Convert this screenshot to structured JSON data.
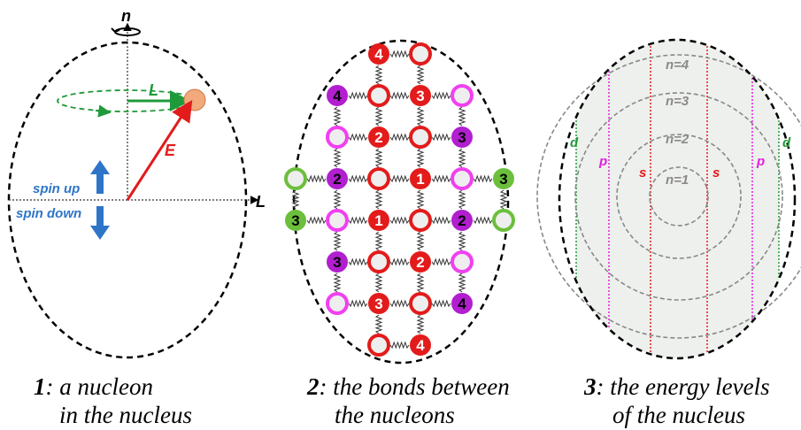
{
  "panel1": {
    "axis_n": "n",
    "axis_L": "L",
    "vector_L": "L",
    "vector_E": "E",
    "spin_up": "spin up",
    "spin_down": "spin down",
    "caption_num": "1",
    "caption_line1": ": a nucleon",
    "caption_line2": "in the nucleus"
  },
  "panel2": {
    "caption_num": "2",
    "caption_line1": ": the bonds between",
    "caption_line2": "the nucleons",
    "nodes": [
      {
        "r": 0,
        "c": 1,
        "t": "red-num",
        "n": "4"
      },
      {
        "r": 0,
        "c": 2,
        "t": "red"
      },
      {
        "r": 1,
        "c": 0,
        "t": "purple-num",
        "n": "4"
      },
      {
        "r": 1,
        "c": 1,
        "t": "red"
      },
      {
        "r": 1,
        "c": 2,
        "t": "red-num",
        "n": "3"
      },
      {
        "r": 1,
        "c": 3,
        "t": "pink"
      },
      {
        "r": 2,
        "c": 0,
        "t": "pink"
      },
      {
        "r": 2,
        "c": 1,
        "t": "red-num",
        "n": "2"
      },
      {
        "r": 2,
        "c": 2,
        "t": "red"
      },
      {
        "r": 2,
        "c": 3,
        "t": "purple-num",
        "n": "3"
      },
      {
        "r": 3,
        "c": -1,
        "t": "green"
      },
      {
        "r": 3,
        "c": 0,
        "t": "purple-num",
        "n": "2"
      },
      {
        "r": 3,
        "c": 1,
        "t": "red"
      },
      {
        "r": 3,
        "c": 2,
        "t": "red-num",
        "n": "1"
      },
      {
        "r": 3,
        "c": 3,
        "t": "pink"
      },
      {
        "r": 3,
        "c": 4,
        "t": "green-num",
        "n": "3"
      },
      {
        "r": 4,
        "c": -1,
        "t": "green-num",
        "n": "3"
      },
      {
        "r": 4,
        "c": 0,
        "t": "pink"
      },
      {
        "r": 4,
        "c": 1,
        "t": "red-num",
        "n": "1"
      },
      {
        "r": 4,
        "c": 2,
        "t": "red"
      },
      {
        "r": 4,
        "c": 3,
        "t": "purple-num",
        "n": "2"
      },
      {
        "r": 4,
        "c": 4,
        "t": "green"
      },
      {
        "r": 5,
        "c": 0,
        "t": "purple-num",
        "n": "3"
      },
      {
        "r": 5,
        "c": 1,
        "t": "red"
      },
      {
        "r": 5,
        "c": 2,
        "t": "red-num",
        "n": "2"
      },
      {
        "r": 5,
        "c": 3,
        "t": "pink"
      },
      {
        "r": 6,
        "c": 0,
        "t": "pink"
      },
      {
        "r": 6,
        "c": 1,
        "t": "red-num",
        "n": "3"
      },
      {
        "r": 6,
        "c": 2,
        "t": "red"
      },
      {
        "r": 6,
        "c": 3,
        "t": "purple-num",
        "n": "4"
      },
      {
        "r": 7,
        "c": 1,
        "t": "red"
      },
      {
        "r": 7,
        "c": 2,
        "t": "red-num",
        "n": "4"
      }
    ]
  },
  "panel3": {
    "levels": [
      "n=1",
      "n=2",
      "n=3",
      "n=4"
    ],
    "sublevel_s": "s",
    "sublevel_p": "p",
    "sublevel_d": "d",
    "caption_num": "3",
    "caption_line1": ": the energy levels",
    "caption_line2": "of the nucleus"
  },
  "colors": {
    "red": "#e31b1b",
    "purple": "#b21fcf",
    "pink": "#f040f0",
    "green": "#6cbf3c",
    "darkgreen": "#1f9a3a",
    "blue": "#2e75c8",
    "nucleon": "#f2a97c"
  }
}
